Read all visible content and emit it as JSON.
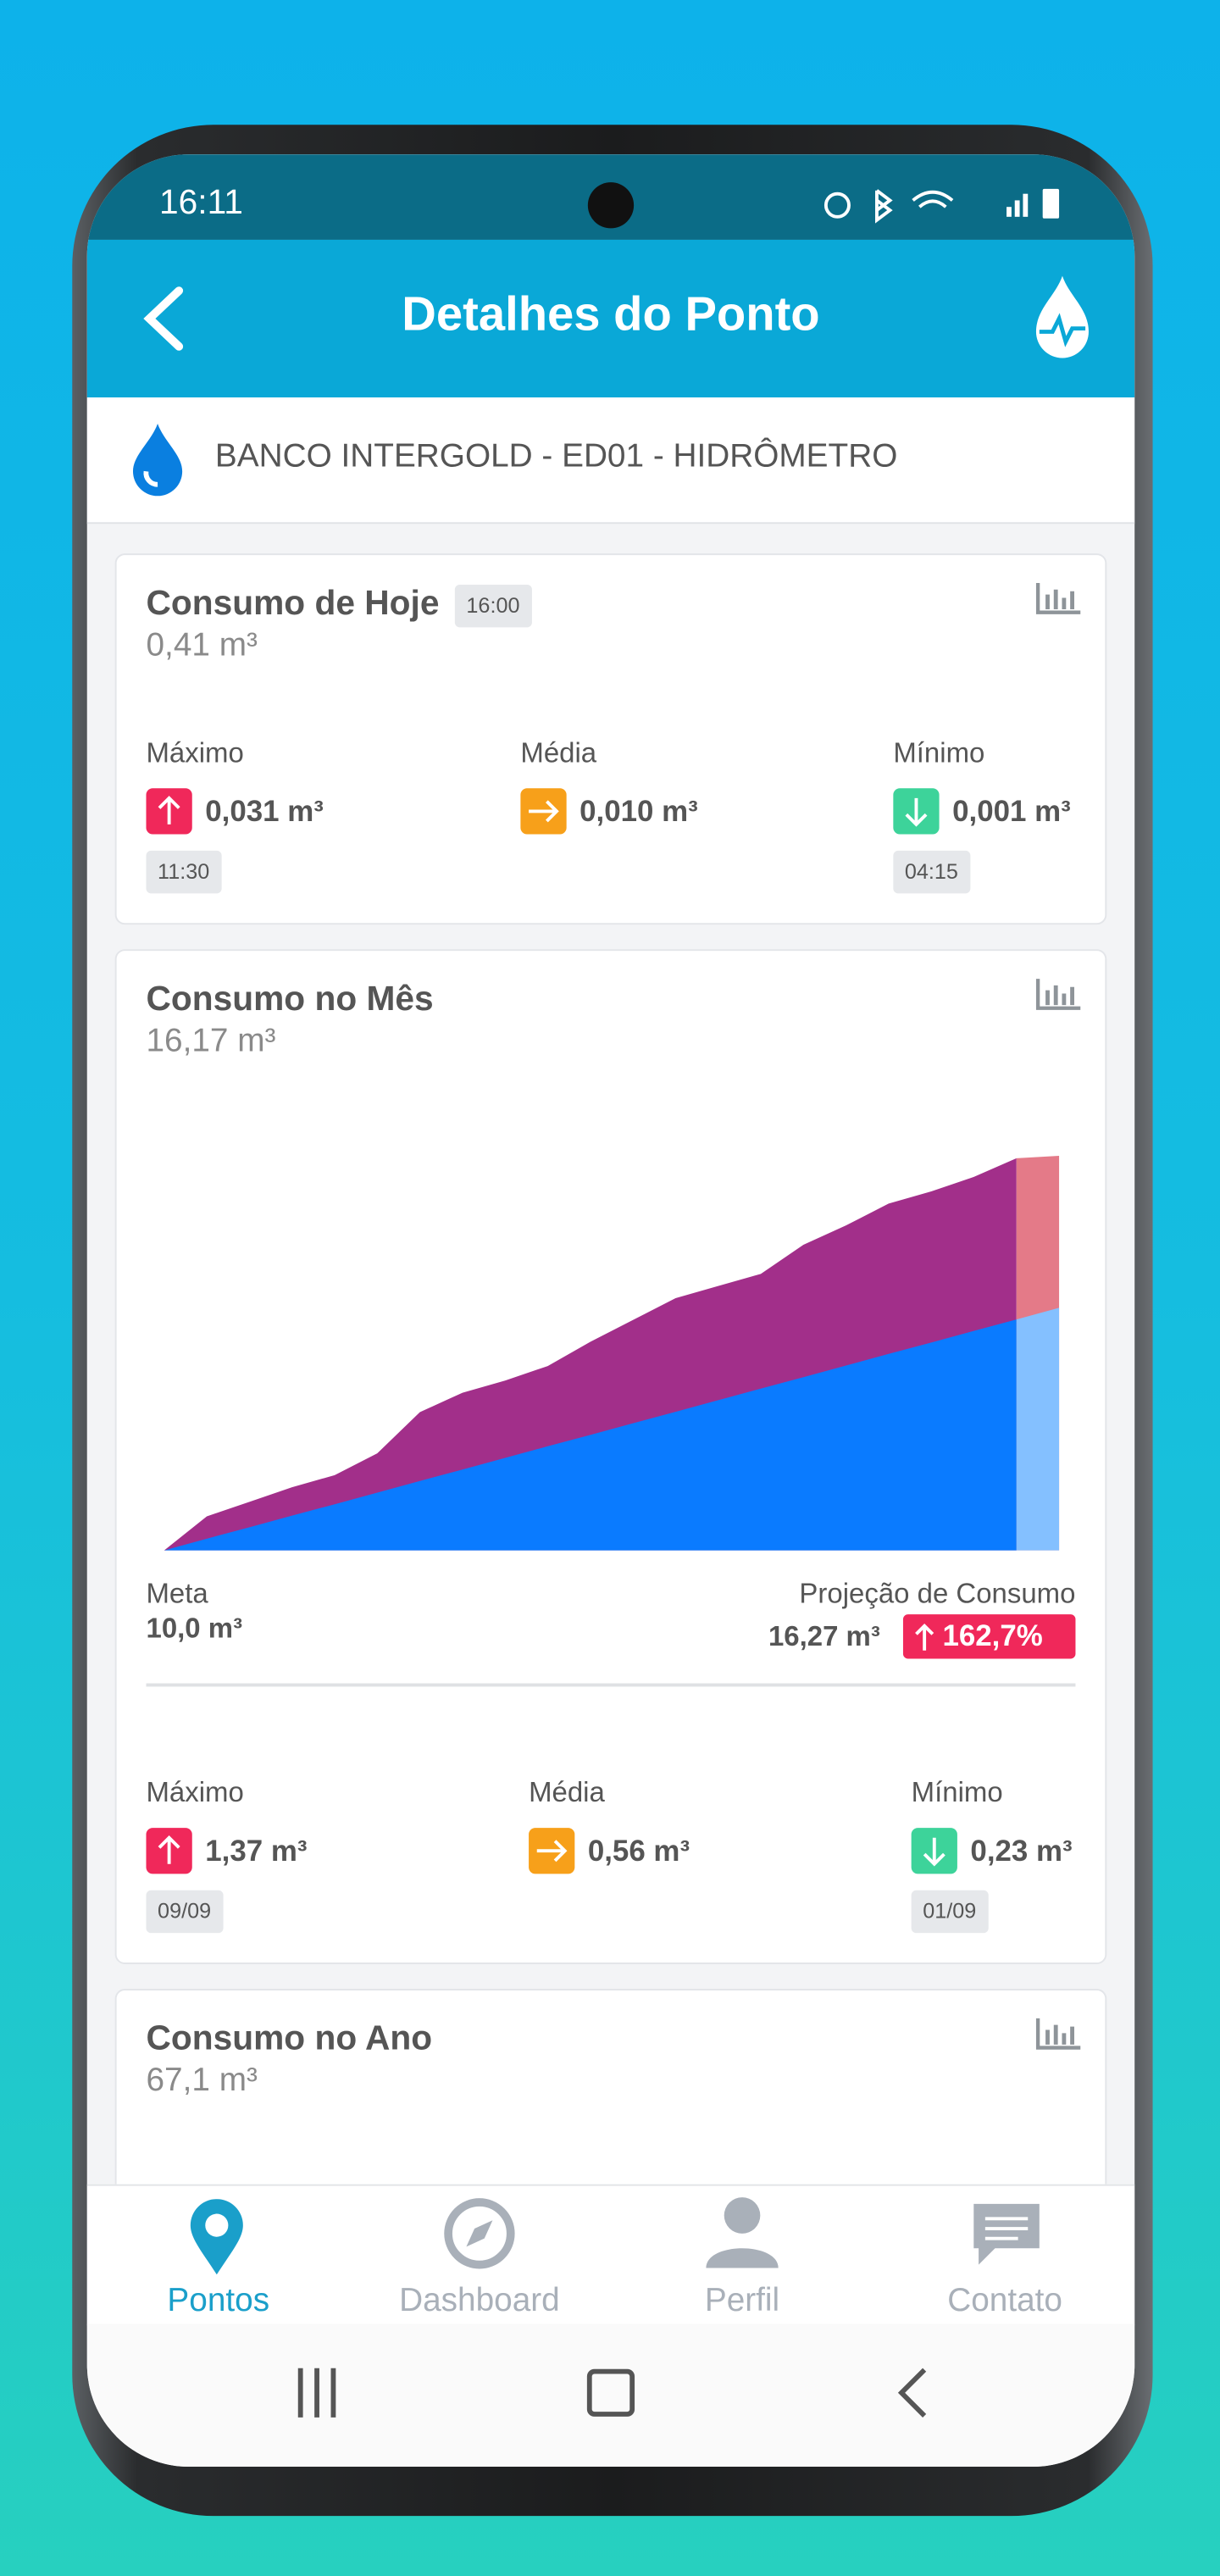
{
  "status_bar": {
    "time": "16:11"
  },
  "header": {
    "title": "Detalhes do Ponto"
  },
  "point": {
    "name": "BANCO INTERGOLD - ED01 - HIDRÔMETRO"
  },
  "today": {
    "title": "Consumo de Hoje",
    "time": "16:00",
    "value": "0,41 m³",
    "stats": [
      {
        "label": "Máximo",
        "value": "0,031 m³",
        "time": "11:30"
      },
      {
        "label": "Média",
        "value": "0,010 m³"
      },
      {
        "label": "Mínimo",
        "value": "0,001 m³",
        "time": "04:15"
      }
    ]
  },
  "month": {
    "title": "Consumo no Mês",
    "value": "16,17 m³",
    "meta_label": "Meta",
    "meta_value": "10,0 m³",
    "projection_label": "Projeção de Consumo",
    "projection_value": "16,27 m³",
    "projection_percent": "162,7%",
    "stats": [
      {
        "label": "Máximo",
        "value": "1,37 m³",
        "time": "09/09"
      },
      {
        "label": "Média",
        "value": "0,56 m³"
      },
      {
        "label": "Mínimo",
        "value": "0,23 m³",
        "time": "01/09"
      }
    ]
  },
  "chart_data": {
    "type": "area",
    "categories": [
      null,
      null,
      null,
      null,
      null,
      null,
      null,
      null,
      null,
      null,
      null,
      null,
      null,
      null,
      null,
      null,
      null,
      null,
      null,
      null,
      null,
      null
    ],
    "ylim": [
      0,
      17
    ],
    "series": [
      {
        "color": "#a22f8a",
        "values": [
          0,
          1.4,
          2.0,
          2.6,
          3.1,
          4.0,
          5.7,
          6.5,
          7.0,
          7.6,
          8.6,
          9.5,
          10.4,
          10.9,
          11.4,
          12.6,
          13.4,
          14.3,
          14.8,
          15.4,
          16.17,
          null
        ]
      },
      {
        "color": "#e47a88",
        "values": [
          null,
          null,
          null,
          null,
          null,
          null,
          null,
          null,
          null,
          null,
          null,
          null,
          null,
          null,
          null,
          null,
          null,
          null,
          null,
          null,
          16.17,
          16.27
        ]
      },
      {
        "color": "#0a7bff",
        "values": [
          0,
          0.48,
          0.95,
          1.43,
          1.9,
          2.38,
          2.86,
          3.33,
          3.81,
          4.29,
          4.76,
          5.24,
          5.71,
          6.19,
          6.67,
          7.14,
          7.62,
          8.1,
          8.57,
          9.05,
          9.52,
          null
        ]
      },
      {
        "color": "#84c0ff",
        "values": [
          null,
          null,
          null,
          null,
          null,
          null,
          null,
          null,
          null,
          null,
          null,
          null,
          null,
          null,
          null,
          null,
          null,
          null,
          null,
          null,
          9.52,
          10
        ]
      }
    ]
  },
  "year": {
    "title": "Consumo no Ano",
    "value": "67,1 m³"
  },
  "nav": [
    {
      "label": "Pontos"
    },
    {
      "label": "Dashboard"
    },
    {
      "label": "Perfil"
    },
    {
      "label": "Contato"
    }
  ]
}
